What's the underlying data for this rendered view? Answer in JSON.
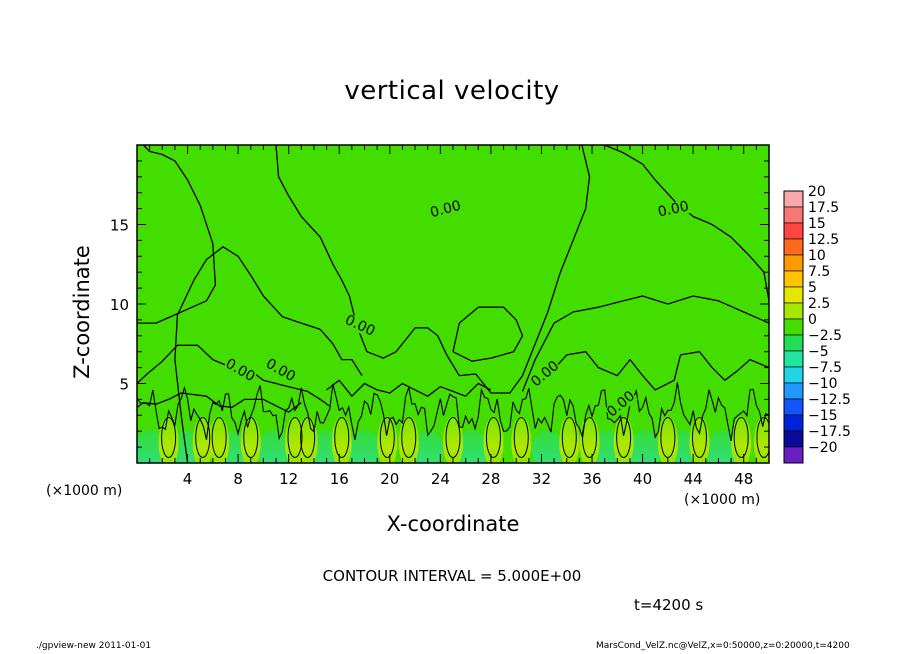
{
  "chart_data": {
    "type": "heatmap",
    "title": "vertical velocity",
    "xlabel": "X-coordinate",
    "ylabel": "Z-coordinate",
    "x_unit": "(×1000 m)",
    "x_ticks": [
      4,
      8,
      12,
      16,
      20,
      24,
      28,
      32,
      36,
      40,
      44,
      48
    ],
    "y_ticks": [
      5,
      10,
      15
    ],
    "xlim": [
      0,
      50
    ],
    "ylim": [
      0,
      20
    ],
    "colorbar": {
      "levels": [
        "20",
        "17.5",
        "15",
        "12.5",
        "10",
        "7.5",
        "5",
        "2.5",
        "0",
        "−2.5",
        "−5",
        "−7.5",
        "−10",
        "−12.5",
        "−15",
        "−17.5",
        "−20"
      ],
      "colors": [
        "#f7a8a8",
        "#f77777",
        "#ff4444",
        "#ff6a1a",
        "#ff9a00",
        "#ffc400",
        "#e6e600",
        "#a6e600",
        "#44dd00",
        "#22dd55",
        "#22e5a0",
        "#22d5e6",
        "#2299ff",
        "#1155ff",
        "#0022dd",
        "#0a0a99",
        "#6a20c0"
      ]
    },
    "contour_label": "0.00",
    "contour_interval": "CONTOUR INTERVAL = 5.000E+00",
    "background_color": "#44dd00"
  },
  "annotations": {
    "time": "t=4200 s",
    "footer_left": "./gpview-new   2011-01-01",
    "footer_right": "MarsCond_VelZ.nc@VelZ,x=0:50000,z=0:20000,t=4200"
  }
}
